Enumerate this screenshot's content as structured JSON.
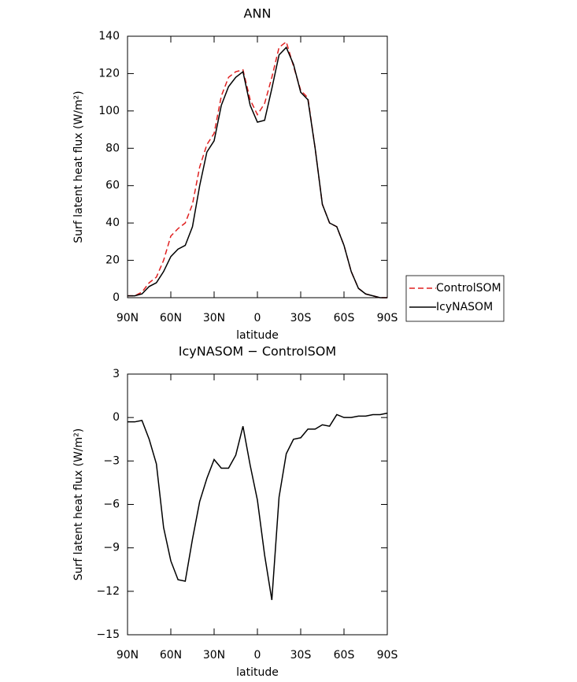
{
  "chart_data": [
    {
      "type": "line",
      "title": "ANN",
      "xlabel": "latitude",
      "ylabel": "Surf latent heat flux (W/m²)",
      "x": [
        90,
        85,
        80,
        75,
        70,
        65,
        60,
        55,
        50,
        45,
        40,
        35,
        30,
        25,
        20,
        15,
        10,
        5,
        0,
        -5,
        -10,
        -15,
        -20,
        -25,
        -30,
        -35,
        -40,
        -45,
        -50,
        -55,
        -60,
        -65,
        -70,
        -75,
        -80,
        -85,
        -90
      ],
      "series": [
        {
          "name": "ControlSOM",
          "color": "#e02020",
          "dash": true,
          "values": [
            1,
            1,
            3,
            8,
            11,
            20,
            33,
            37,
            40,
            50,
            70,
            82,
            88,
            108,
            118,
            121,
            122,
            106,
            98,
            104,
            118,
            134,
            137,
            124,
            111,
            107,
            80,
            50,
            40,
            38,
            28,
            14,
            5,
            2,
            1,
            0,
            0
          ]
        },
        {
          "name": "IcyNASOM",
          "color": "#000000",
          "dash": false,
          "values": [
            1,
            1,
            2,
            6,
            8,
            14,
            22,
            26,
            28,
            38,
            60,
            78,
            84,
            103,
            113,
            118,
            121,
            103,
            94,
            95,
            112,
            130,
            134,
            125,
            110,
            106,
            80,
            50,
            40,
            38,
            28,
            14,
            5,
            2,
            1,
            0,
            0
          ]
        }
      ],
      "xlim": [
        90,
        -90
      ],
      "xticks": [
        {
          "value": 90,
          "label": "90N"
        },
        {
          "value": 60,
          "label": "60N"
        },
        {
          "value": 30,
          "label": "30N"
        },
        0,
        {
          "value": -30,
          "label": "30S"
        },
        {
          "value": -60,
          "label": "60S"
        },
        {
          "value": -90,
          "label": "90S"
        }
      ],
      "ylim": [
        0,
        140
      ],
      "yticks": [
        0,
        20,
        40,
        60,
        80,
        100,
        120,
        140
      ],
      "legend": "right"
    },
    {
      "type": "line",
      "title": "IcyNASOM − ControlSOM",
      "xlabel": "latitude",
      "ylabel": "Surf latent heat flux (W/m²)",
      "x": [
        90,
        85,
        80,
        75,
        70,
        65,
        60,
        55,
        50,
        45,
        40,
        35,
        30,
        25,
        20,
        15,
        10,
        5,
        0,
        -5,
        -10,
        -15,
        -20,
        -25,
        -30,
        -35,
        -40,
        -45,
        -50,
        -55,
        -60,
        -65,
        -70,
        -75,
        -80,
        -85,
        -90
      ],
      "series": [
        {
          "color": "#000000",
          "dash": false,
          "values": [
            -0.3,
            -0.3,
            -0.2,
            -1.5,
            -3.2,
            -7.6,
            -9.9,
            -11.2,
            -11.3,
            -8.4,
            -5.8,
            -4.2,
            -2.9,
            -3.5,
            -3.5,
            -2.6,
            -0.6,
            -3.3,
            -5.7,
            -9.5,
            -12.6,
            -5.5,
            -2.5,
            -1.5,
            -1.4,
            -0.8,
            -0.8,
            -0.5,
            -0.6,
            0.2,
            0.0,
            0.0,
            0.1,
            0.1,
            0.2,
            0.2,
            0.3
          ]
        }
      ],
      "xlim": [
        90,
        -90
      ],
      "xticks": [
        {
          "value": 90,
          "label": "90N"
        },
        {
          "value": 60,
          "label": "60N"
        },
        {
          "value": 30,
          "label": "30N"
        },
        0,
        {
          "value": -30,
          "label": "30S"
        },
        {
          "value": -60,
          "label": "60S"
        },
        {
          "value": -90,
          "label": "90S"
        }
      ],
      "ylim": [
        -15,
        3
      ],
      "yticks": [
        {
          "value": -15,
          "label": "−15"
        },
        {
          "value": -12,
          "label": "−12"
        },
        {
          "value": -9,
          "label": "−9"
        },
        {
          "value": -6,
          "label": "−6"
        },
        {
          "value": -3,
          "label": "−3"
        },
        0,
        3
      ]
    }
  ]
}
